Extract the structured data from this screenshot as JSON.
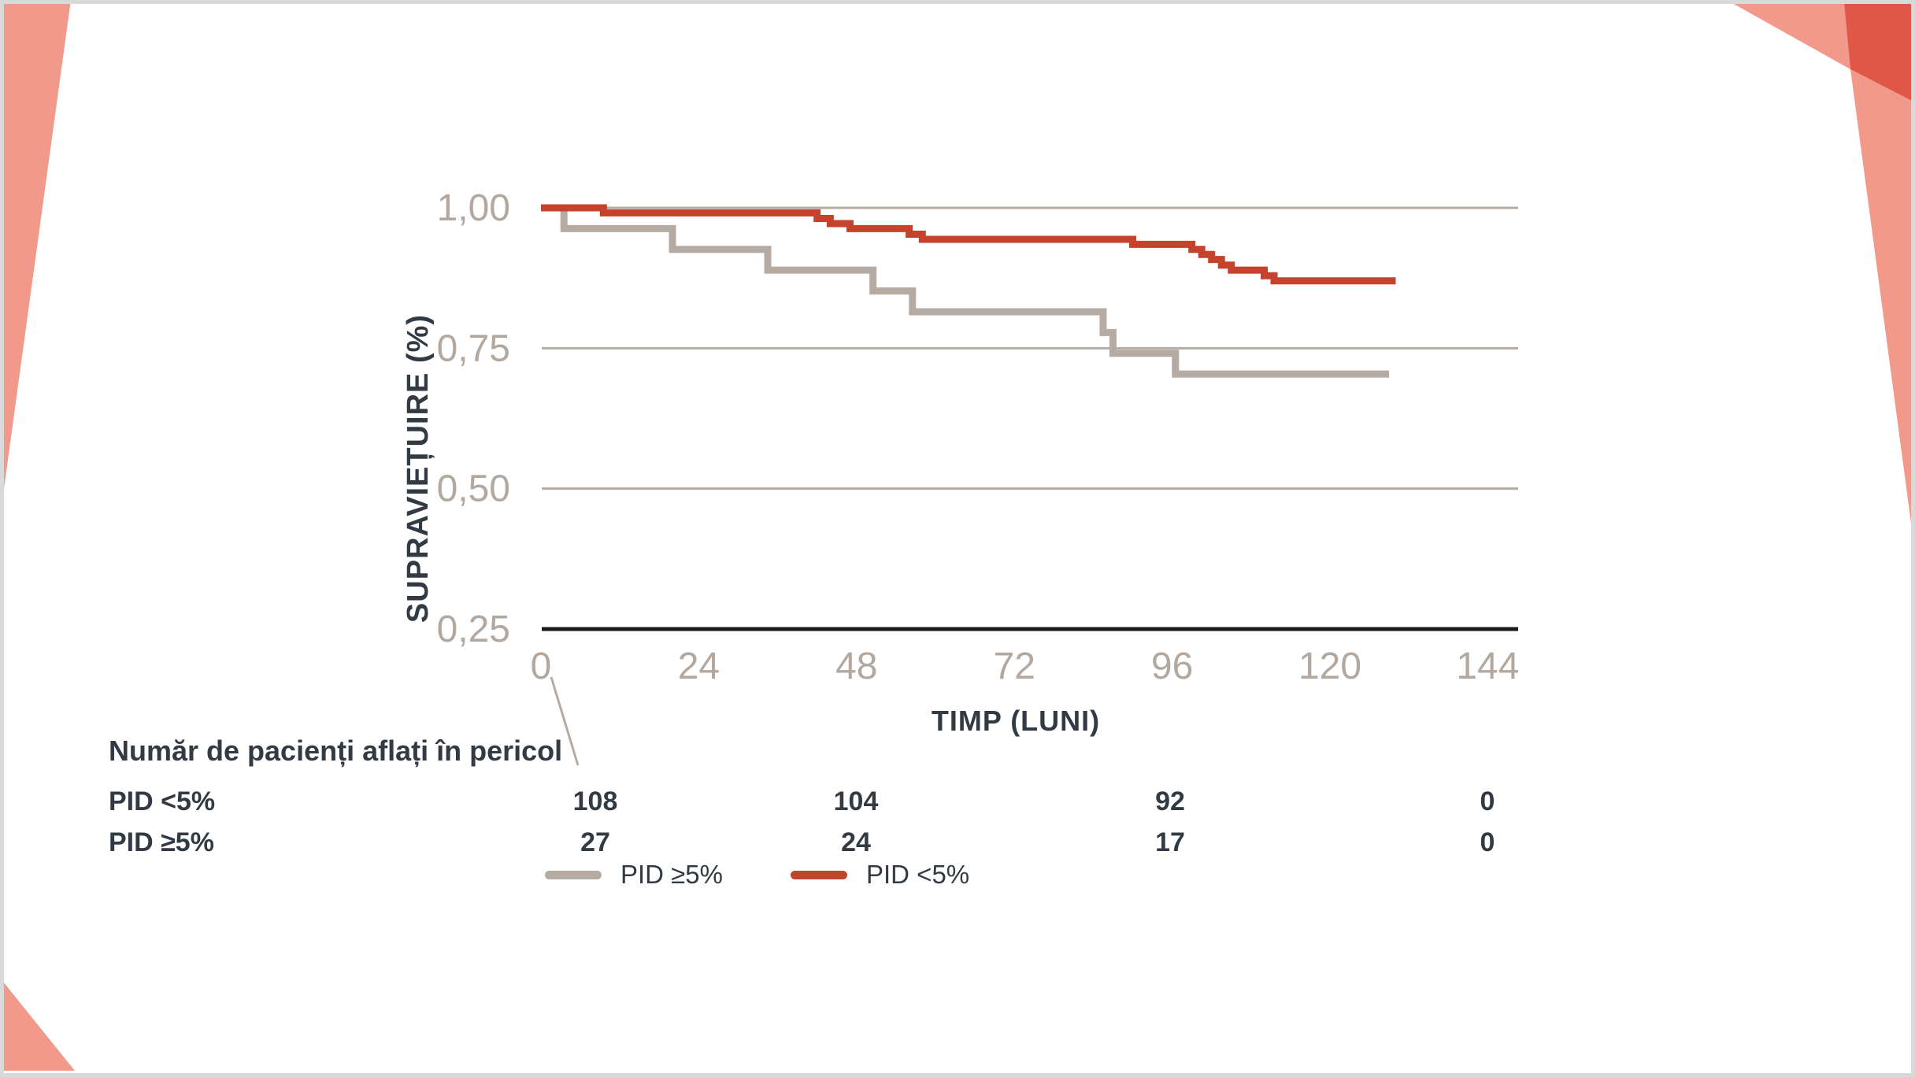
{
  "slide": {
    "background": "#ffffff",
    "frame_color": "#d9d9d9"
  },
  "theme": {
    "salmon": "#f19a8b",
    "corner_red": "#e15747",
    "curve_red": "#c5422d",
    "taupe": "#b5aba2",
    "tick_label_color": "#b2a89f",
    "charcoal": "#323b44",
    "axis_color": "#1b1b1b"
  },
  "chart_data": {
    "type": "line",
    "subtype": "kaplan-meier-step-curves",
    "title": "",
    "xlabel": "TIMP (LUNI)",
    "ylabel": "SUPRAVIEȚUIRE (%)",
    "xlim": [
      0,
      148
    ],
    "ylim": [
      0.25,
      1.0
    ],
    "x_ticks": [
      0,
      24,
      48,
      72,
      96,
      120,
      144
    ],
    "y_ticks": [
      {
        "label": "1,00",
        "value": 1.0
      },
      {
        "label": "0,75",
        "value": 0.75
      },
      {
        "label": "0,50",
        "value": 0.5
      },
      {
        "label": "0,25",
        "value": 0.25
      }
    ],
    "grid": "horizontal-gridlines-at-1.00-0.75-0.50",
    "baseline_axis_at": 0.25,
    "legend_position": "bottom",
    "series": [
      {
        "name": "PID ≥5%",
        "color": "#b5aba2",
        "points": [
          [
            0,
            1.0
          ],
          [
            3.5,
            0.963
          ],
          [
            20,
            0.926
          ],
          [
            34.5,
            0.889
          ],
          [
            50.5,
            0.852
          ],
          [
            56.5,
            0.815
          ],
          [
            85.5,
            0.778
          ],
          [
            87,
            0.741
          ],
          [
            96.5,
            0.704
          ],
          [
            129,
            0.704
          ]
        ]
      },
      {
        "name": "PID <5%",
        "color": "#c5422d",
        "points": [
          [
            0,
            1.0
          ],
          [
            9.5,
            0.991
          ],
          [
            42,
            0.981
          ],
          [
            44,
            0.972
          ],
          [
            47,
            0.963
          ],
          [
            56,
            0.953
          ],
          [
            58,
            0.944
          ],
          [
            90,
            0.935
          ],
          [
            99,
            0.926
          ],
          [
            100.5,
            0.917
          ],
          [
            102,
            0.908
          ],
          [
            103.5,
            0.898
          ],
          [
            105,
            0.889
          ],
          [
            110,
            0.879
          ],
          [
            111.5,
            0.87
          ],
          [
            130,
            0.87
          ]
        ]
      }
    ]
  },
  "axis_titles": {
    "y": "SUPRAVIEȚUIRE (%)",
    "x": "TIMP (LUNI)"
  },
  "risk_table": {
    "title": "Număr de pacienți aflați în pericol",
    "columns_months": [
      0,
      48,
      96,
      144
    ],
    "rows": [
      {
        "label": "PID <5%",
        "values": [
          "108",
          "104",
          "92",
          "0"
        ]
      },
      {
        "label": "PID ≥5%",
        "values": [
          "27",
          "24",
          "17",
          "0"
        ]
      }
    ]
  },
  "legend": {
    "items": [
      {
        "label": "PID ≥5%",
        "color": "#b5aba2"
      },
      {
        "label": "PID <5%",
        "color": "#c5422d"
      }
    ]
  }
}
